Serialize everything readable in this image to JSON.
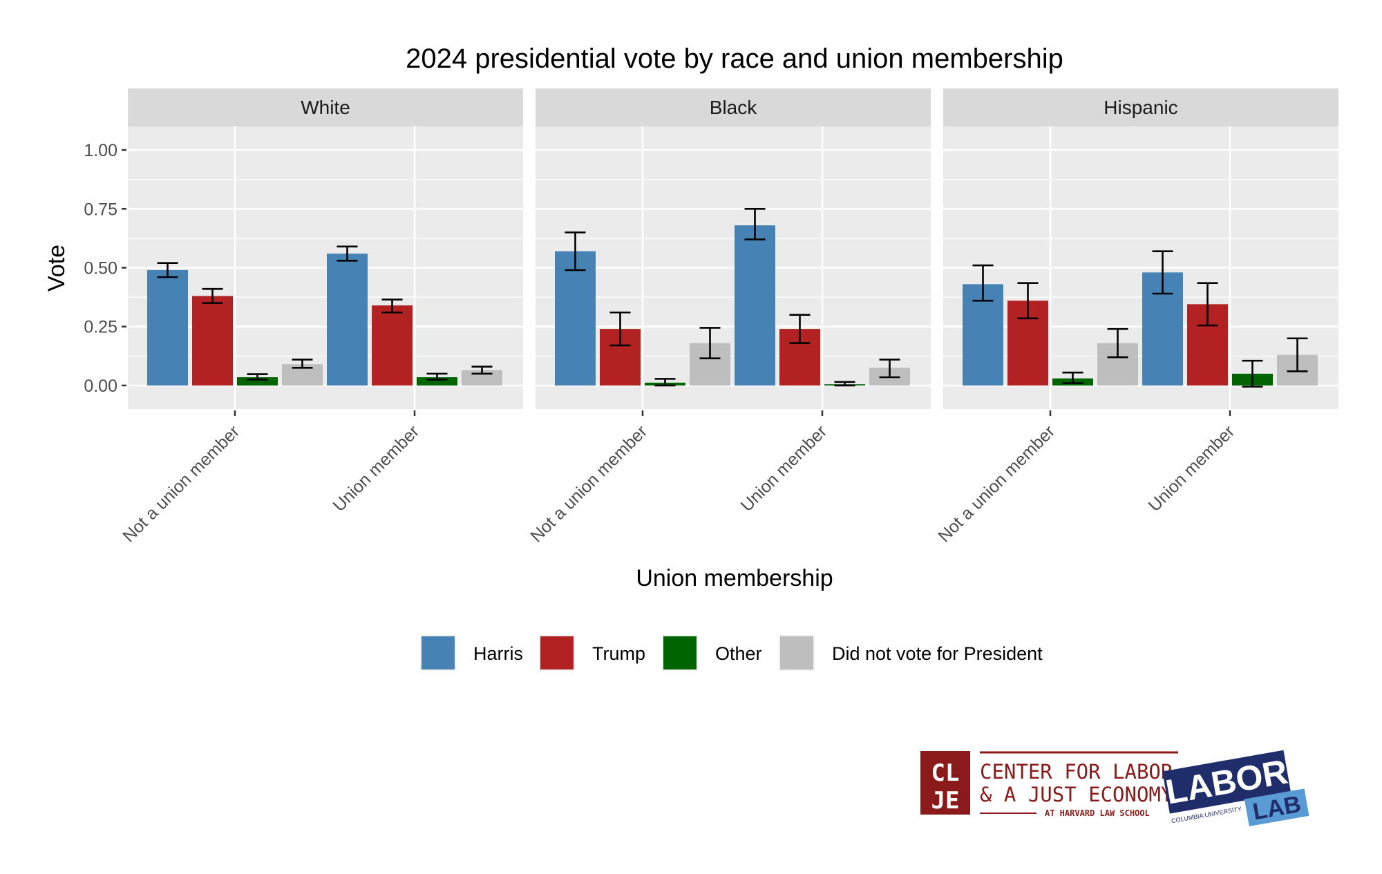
{
  "chart_data": {
    "type": "bar",
    "title": "2024 presidential vote by race and union membership",
    "xlabel": "Union membership",
    "ylabel": "Vote",
    "ylim": [
      -0.1,
      1.1
    ],
    "yticks": [
      0.0,
      0.25,
      0.5,
      0.75,
      1.0
    ],
    "ytick_labels": [
      "0.00",
      "0.25",
      "0.50",
      "0.75",
      "1.00"
    ],
    "grid": true,
    "legend_position": "bottom",
    "categories": [
      "Not a union member",
      "Union member"
    ],
    "facets": [
      {
        "name": "White",
        "series": [
          {
            "name": "Harris",
            "values": [
              0.49,
              0.56
            ],
            "err_low": [
              0.46,
              0.53
            ],
            "err_high": [
              0.52,
              0.59
            ]
          },
          {
            "name": "Trump",
            "values": [
              0.38,
              0.34
            ],
            "err_low": [
              0.35,
              0.31
            ],
            "err_high": [
              0.41,
              0.365
            ]
          },
          {
            "name": "Other",
            "values": [
              0.035,
              0.035
            ],
            "err_low": [
              0.025,
              0.025
            ],
            "err_high": [
              0.048,
              0.05
            ]
          },
          {
            "name": "Did not vote for President",
            "values": [
              0.09,
              0.065
            ],
            "err_low": [
              0.075,
              0.05
            ],
            "err_high": [
              0.11,
              0.08
            ]
          }
        ]
      },
      {
        "name": "Black",
        "series": [
          {
            "name": "Harris",
            "values": [
              0.57,
              0.68
            ],
            "err_low": [
              0.49,
              0.62
            ],
            "err_high": [
              0.65,
              0.75
            ]
          },
          {
            "name": "Trump",
            "values": [
              0.24,
              0.24
            ],
            "err_low": [
              0.17,
              0.18
            ],
            "err_high": [
              0.31,
              0.3
            ]
          },
          {
            "name": "Other",
            "values": [
              0.012,
              0.005
            ],
            "err_low": [
              0.0,
              0.0
            ],
            "err_high": [
              0.028,
              0.015
            ]
          },
          {
            "name": "Did not vote for President",
            "values": [
              0.18,
              0.075
            ],
            "err_low": [
              0.115,
              0.035
            ],
            "err_high": [
              0.245,
              0.11
            ]
          }
        ]
      },
      {
        "name": "Hispanic",
        "series": [
          {
            "name": "Harris",
            "values": [
              0.43,
              0.48
            ],
            "err_low": [
              0.36,
              0.39
            ],
            "err_high": [
              0.51,
              0.57
            ]
          },
          {
            "name": "Trump",
            "values": [
              0.36,
              0.345
            ],
            "err_low": [
              0.285,
              0.255
            ],
            "err_high": [
              0.435,
              0.435
            ]
          },
          {
            "name": "Other",
            "values": [
              0.03,
              0.05
            ],
            "err_low": [
              0.01,
              -0.005
            ],
            "err_high": [
              0.055,
              0.105
            ]
          },
          {
            "name": "Did not vote for President",
            "values": [
              0.18,
              0.13
            ],
            "err_low": [
              0.12,
              0.06
            ],
            "err_high": [
              0.24,
              0.2
            ]
          }
        ]
      }
    ],
    "colors": {
      "Harris": "#4682B4",
      "Trump": "#B22222",
      "Other": "#006400",
      "Did not vote for President": "#BEBEBE"
    }
  },
  "logos": {
    "cljc": {
      "monogram": [
        "CL",
        "JE"
      ],
      "line1": "CENTER FOR LABOR",
      "line2": "& A JUST ECONOMY",
      "line3": "AT HARVARD LAW SCHOOL",
      "color": "#8B1A1A"
    },
    "laborlab": {
      "word1": "LABOR",
      "word2": "LAB",
      "sub": "COLUMBIA UNIVERSITY",
      "color_dark": "#1F2E6B",
      "color_light": "#5B9BD5"
    }
  }
}
